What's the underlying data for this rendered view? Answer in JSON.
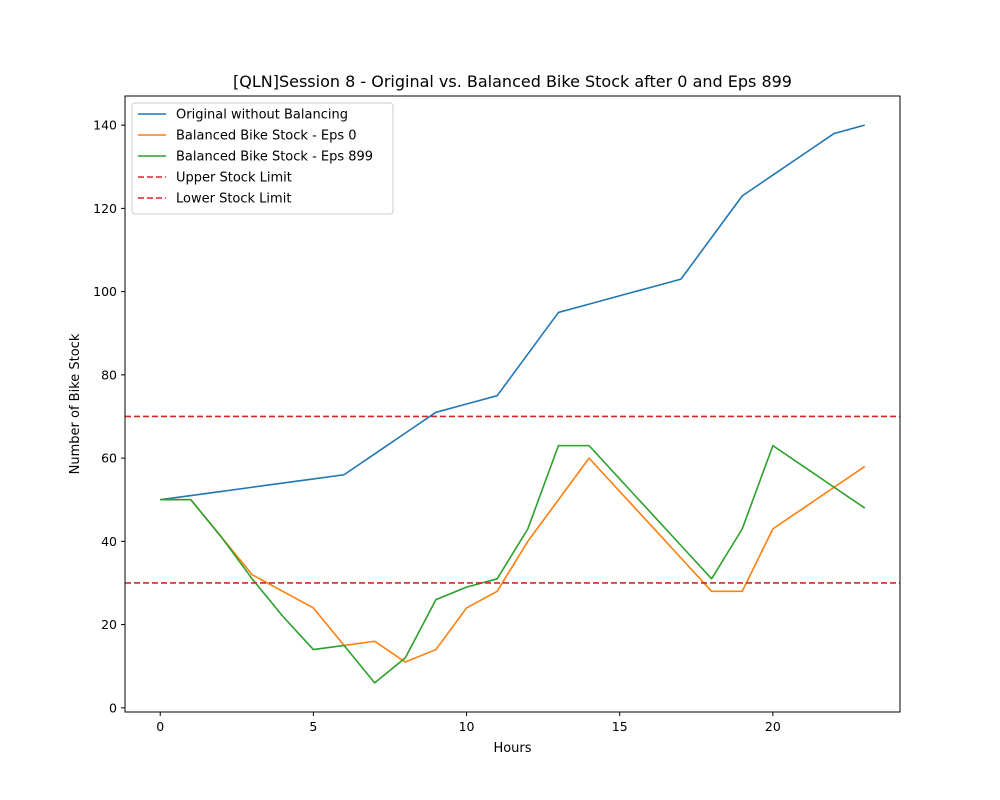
{
  "chart_data": {
    "type": "line",
    "title": "[QLN]Session 8 - Original vs. Balanced Bike Stock after 0 and Eps 899",
    "xlabel": "Hours",
    "ylabel": "Number of Bike Stock",
    "xlim": [
      -1.15,
      24.15
    ],
    "ylim": [
      -1,
      147
    ],
    "xticks": [
      0,
      5,
      10,
      15,
      20
    ],
    "yticks": [
      0,
      20,
      40,
      60,
      80,
      100,
      120,
      140
    ],
    "grid": false,
    "legend_position": "upper-left",
    "series": [
      {
        "name": "Original without Balancing",
        "color": "#1f77b4",
        "style": "solid",
        "x": [
          0,
          1,
          2,
          3,
          4,
          5,
          6,
          7,
          8,
          9,
          10,
          11,
          12,
          13,
          14,
          15,
          16,
          17,
          18,
          19,
          20,
          21,
          22,
          23
        ],
        "values": [
          50,
          51,
          52,
          53,
          54,
          55,
          56,
          61,
          66,
          71,
          73,
          75,
          85,
          95,
          97,
          99,
          101,
          103,
          113,
          123,
          128,
          133,
          138,
          140
        ]
      },
      {
        "name": "Balanced Bike Stock - Eps 0",
        "color": "#ff7f0e",
        "style": "solid",
        "x": [
          0,
          1,
          2,
          3,
          4,
          5,
          6,
          7,
          8,
          9,
          10,
          11,
          12,
          13,
          14,
          15,
          16,
          17,
          18,
          19,
          20,
          21,
          22,
          23
        ],
        "values": [
          50,
          50,
          41,
          32,
          28,
          24,
          15,
          16,
          11,
          14,
          24,
          28,
          40,
          50,
          60,
          52,
          44,
          36,
          28,
          28,
          43,
          48,
          53,
          58
        ]
      },
      {
        "name": "Balanced Bike Stock - Eps 899",
        "color": "#2ca02c",
        "style": "solid",
        "x": [
          0,
          1,
          2,
          3,
          4,
          5,
          6,
          7,
          8,
          9,
          10,
          11,
          12,
          13,
          14,
          15,
          16,
          17,
          18,
          19,
          20,
          21,
          22,
          23
        ],
        "values": [
          50,
          50,
          41,
          31,
          22,
          14,
          15,
          6,
          12,
          26,
          29,
          31,
          43,
          63,
          63,
          55,
          47,
          39,
          31,
          43,
          63,
          58,
          53,
          48
        ]
      }
    ],
    "hlines": [
      {
        "name": "Upper Stock Limit",
        "value": 70,
        "color": "#d62728",
        "style": "dashed"
      },
      {
        "name": "Lower Stock Limit",
        "value": 30,
        "color": "#d62728",
        "style": "dashed"
      }
    ]
  }
}
